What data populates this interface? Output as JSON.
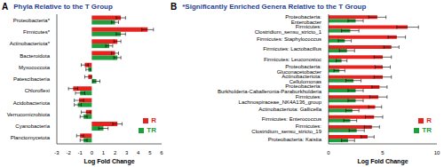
{
  "chart_data": [
    {
      "type": "bar",
      "annotation": "A",
      "title": "Phyla Relative to the T Group",
      "orientation": "horizontal",
      "xlabel": "Log Fold Change",
      "xlim": [
        -3,
        6
      ],
      "xticks": [
        -3,
        -2,
        -1,
        0,
        1,
        2,
        3,
        4,
        5,
        6
      ],
      "grid": false,
      "legend": "lower right",
      "categories": [
        "Proteobacteria*",
        "Firmicutes*",
        "Actinobacteriota*",
        "Bacteroidota",
        "Myxococcota",
        "Patescibacteria",
        "Chloroflexi",
        "Acidobacteriota",
        "Verrucomicrobiota",
        "Cyanobacteria",
        "Planctomycetota"
      ],
      "series": [
        {
          "name": "R",
          "color": "#e8231f",
          "values": [
            2.5,
            4.8,
            2.2,
            2.0,
            -0.6,
            -0.3,
            -1.6,
            -1.1,
            -0.5,
            2.2,
            -1.0
          ],
          "errors": [
            0.4,
            0.5,
            0.3,
            0.3,
            0.3,
            0.3,
            0.4,
            0.4,
            0.4,
            0.4,
            0.3
          ]
        },
        {
          "name": "TR",
          "color": "#1e9e3c",
          "values": [
            2.0,
            2.5,
            1.5,
            2.2,
            -0.3,
            0.4,
            -1.0,
            -1.2,
            -0.7,
            1.0,
            -0.7
          ],
          "errors": [
            0.3,
            0.4,
            0.3,
            0.3,
            0.2,
            0.3,
            0.4,
            0.3,
            0.3,
            0.4,
            0.3
          ]
        }
      ]
    },
    {
      "type": "bar",
      "annotation": "B",
      "title": "*Significantly Enriched Genera Relative to the T Group",
      "orientation": "horizontal",
      "xlabel": "Log Fold Change",
      "xlim": [
        0,
        10
      ],
      "xticks": [
        0,
        5,
        10
      ],
      "grid": false,
      "legend": "lower right",
      "categories": [
        "Proteobacteria: Enterobacter",
        "Firmicutes: Clostridium_sensu_stricto_1",
        "Firmicutes: Staphylococcus",
        "Firmicutes: Lactobacillus",
        "Firmicutes: Leuconostoc",
        "Proteobacteria: Gluconacetobacter",
        "Actinobacteriota: Cellulomonas",
        "Proteobacteria: Burkholderia-Caballeronia-Paraburkholderia",
        "Firmicutes: Lachnospiraceae_NK4A136_group",
        "Actinobacteriota: Gallicella",
        "Firmicutes: Enterococcus",
        "Firmicutes: Clostridium_sensu_stricto_19",
        "Proteobacteria: Kaistia"
      ],
      "series": [
        {
          "name": "R",
          "color": "#e8231f",
          "values": [
            4.5,
            7.3,
            6.3,
            5.8,
            5.0,
            5.0,
            5.0,
            4.7,
            4.6,
            4.3,
            4.2,
            4.0,
            3.6
          ],
          "errors": [
            0.8,
            1.0,
            0.8,
            0.7,
            0.8,
            0.7,
            0.8,
            0.7,
            0.8,
            0.6,
            0.8,
            0.7,
            0.6
          ]
        },
        {
          "name": "TR",
          "color": "#1e9e3c",
          "values": [
            2.5,
            2.0,
            1.5,
            1.7,
            1.2,
            1.0,
            2.3,
            2.5,
            2.5,
            2.2,
            2.0,
            2.6,
            1.8
          ],
          "errors": [
            0.7,
            0.8,
            0.6,
            0.7,
            0.5,
            0.5,
            0.7,
            0.7,
            0.7,
            0.6,
            0.6,
            0.7,
            0.6
          ]
        }
      ]
    }
  ]
}
